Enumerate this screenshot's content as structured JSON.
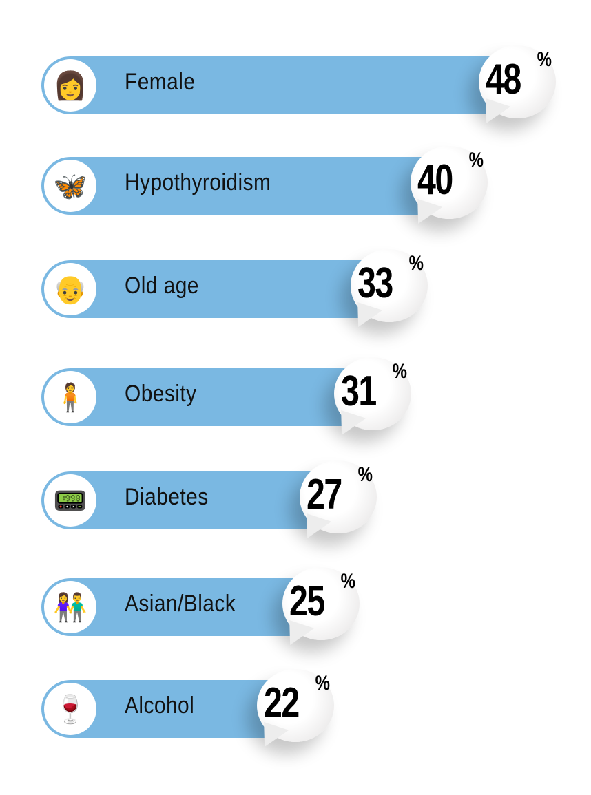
{
  "chart_data": {
    "type": "bar",
    "orientation": "horizontal",
    "categories": [
      "Female",
      "Hypothyroidism",
      "Old age",
      "Obesity",
      "Diabetes",
      "Asian/Black",
      "Alcohol"
    ],
    "values": [
      48,
      40,
      33,
      31,
      27,
      25,
      22
    ],
    "value_suffix": "%",
    "icons": [
      "woman-face-icon",
      "thyroid-icon",
      "elderly-man-icon",
      "obese-person-icon",
      "glucose-meter-icon",
      "diverse-people-icon",
      "alcohol-drinks-icon"
    ],
    "bar_color": "#7ab8e2"
  }
}
